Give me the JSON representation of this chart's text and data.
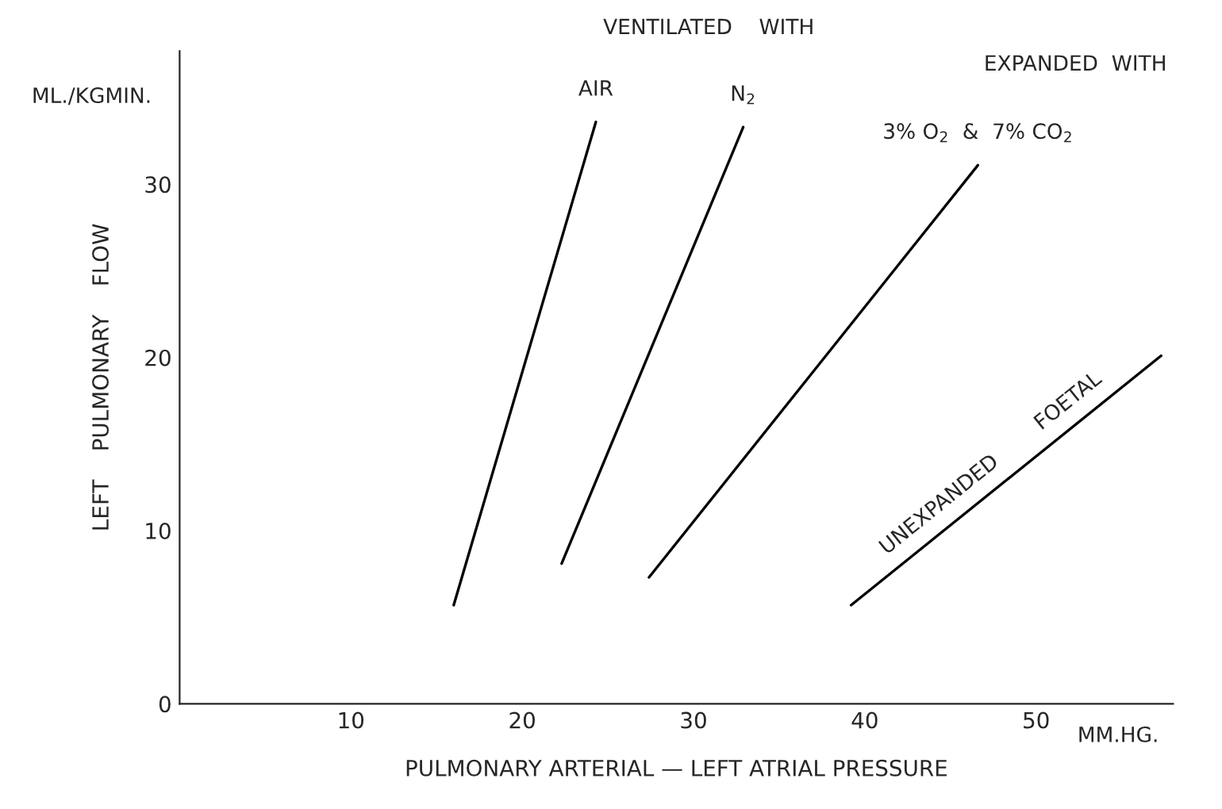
{
  "chart_data": {
    "type": "line",
    "xlabel": "PULMONARY ARTERIAL — LEFT ATRIAL PRESSURE",
    "ylabel": "LEFT    PULMONARY    FLOW",
    "xlim": [
      0,
      58
    ],
    "ylim": [
      0,
      37.7
    ],
    "xticks": [
      10,
      20,
      30,
      40,
      50
    ],
    "yticks": [
      0,
      10,
      20,
      30
    ],
    "grid": false,
    "marker": "none",
    "line_style": "solid",
    "series": [
      {
        "name": "AIR",
        "color": "#000000",
        "x": [
          16.0,
          24.3
        ],
        "values": [
          5.7,
          33.6
        ]
      },
      {
        "name": "N$_{2}$",
        "color": "#000000",
        "x": [
          22.3,
          32.9
        ],
        "values": [
          8.1,
          33.3
        ]
      },
      {
        "name": "3% O$_{2}$  &  7% CO$_{2}$",
        "color": "#000000",
        "x": [
          27.4,
          46.6
        ],
        "values": [
          7.3,
          31.1
        ]
      },
      {
        "name": "UNEXPANDED        FOETAL",
        "color": "#000000",
        "x": [
          39.2,
          57.3
        ],
        "values": [
          5.7,
          20.1
        ]
      }
    ],
    "annotations": [
      "VENTILATED    WITH",
      "EXPANDED  WITH",
      "ML./KGMIN.",
      "MM.HG."
    ]
  }
}
